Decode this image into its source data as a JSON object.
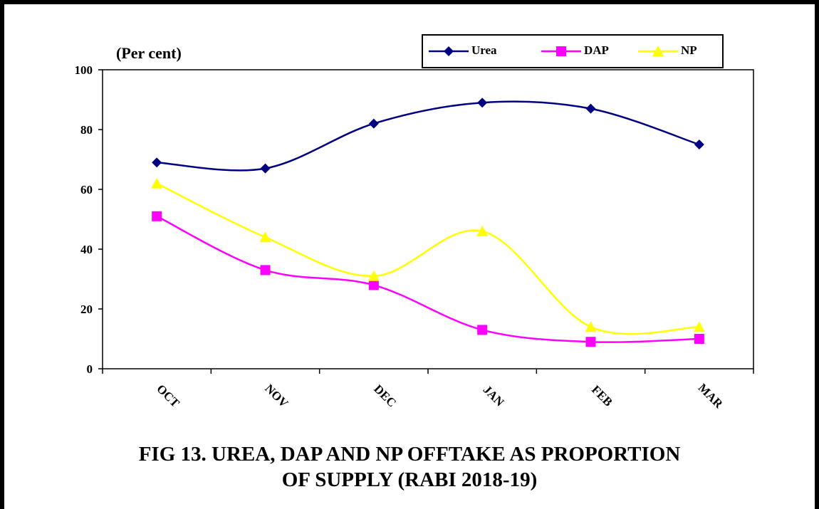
{
  "chart_data": {
    "type": "line",
    "title": "FIG 13.  UREA, DAP AND NP OFFTAKE AS PROPORTION OF SUPPLY (RABI 2018-19)",
    "title_lines": [
      "FIG 13.  UREA, DAP AND NP OFFTAKE AS PROPORTION",
      "OF SUPPLY (RABI 2018-19)"
    ],
    "ylabel": "(Per cent)",
    "xlabel": "",
    "categories": [
      "OCT",
      "NOV",
      "DEC",
      "JAN",
      "FEB",
      "MAR"
    ],
    "ylim": [
      0,
      100
    ],
    "yticks": [
      0,
      20,
      40,
      60,
      80,
      100
    ],
    "smooth": true,
    "grid": false,
    "legend_position": "top-right",
    "series": [
      {
        "name": "Urea",
        "values": [
          69,
          67,
          82,
          89,
          87,
          75
        ],
        "color": "#000080",
        "marker": "diamond"
      },
      {
        "name": "DAP",
        "values": [
          51,
          33,
          28,
          13,
          9,
          10
        ],
        "color": "#ff00ff",
        "marker": "square"
      },
      {
        "name": "NP",
        "values": [
          62,
          44,
          31,
          46,
          14,
          14
        ],
        "color": "#ffff00",
        "marker": "triangle"
      }
    ]
  }
}
